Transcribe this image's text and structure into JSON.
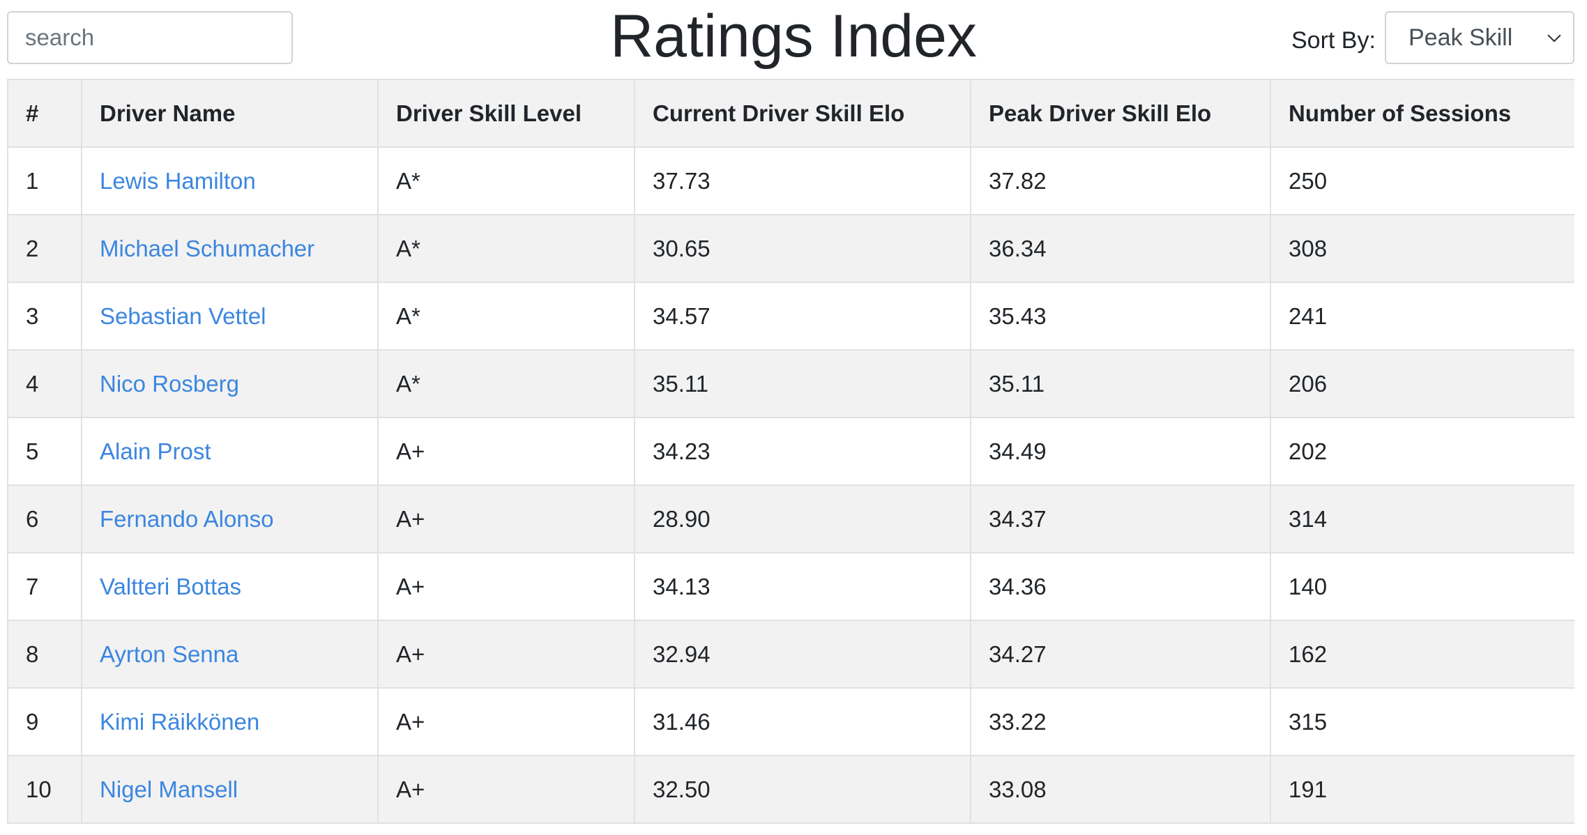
{
  "header": {
    "search_placeholder": "search",
    "title": "Ratings Index",
    "sort_label": "Sort By:",
    "sort_selected": "Peak Skill",
    "sort_icon": "chevron-down-icon"
  },
  "table": {
    "columns": [
      "#",
      "Driver Name",
      "Driver Skill Level",
      "Current Driver Skill Elo",
      "Peak Driver Skill Elo",
      "Number of Sessions"
    ],
    "rows": [
      {
        "rank": "1",
        "name": "Lewis Hamilton",
        "level": "A*",
        "current": "37.73",
        "peak": "37.82",
        "sessions": "250"
      },
      {
        "rank": "2",
        "name": "Michael Schumacher",
        "level": "A*",
        "current": "30.65",
        "peak": "36.34",
        "sessions": "308"
      },
      {
        "rank": "3",
        "name": "Sebastian Vettel",
        "level": "A*",
        "current": "34.57",
        "peak": "35.43",
        "sessions": "241"
      },
      {
        "rank": "4",
        "name": "Nico Rosberg",
        "level": "A*",
        "current": "35.11",
        "peak": "35.11",
        "sessions": "206"
      },
      {
        "rank": "5",
        "name": "Alain Prost",
        "level": "A+",
        "current": "34.23",
        "peak": "34.49",
        "sessions": "202"
      },
      {
        "rank": "6",
        "name": "Fernando Alonso",
        "level": "A+",
        "current": "28.90",
        "peak": "34.37",
        "sessions": "314"
      },
      {
        "rank": "7",
        "name": "Valtteri Bottas",
        "level": "A+",
        "current": "34.13",
        "peak": "34.36",
        "sessions": "140"
      },
      {
        "rank": "8",
        "name": "Ayrton Senna",
        "level": "A+",
        "current": "32.94",
        "peak": "34.27",
        "sessions": "162"
      },
      {
        "rank": "9",
        "name": "Kimi Räikkönen",
        "level": "A+",
        "current": "31.46",
        "peak": "33.22",
        "sessions": "315"
      },
      {
        "rank": "10",
        "name": "Nigel Mansell",
        "level": "A+",
        "current": "32.50",
        "peak": "33.08",
        "sessions": "191"
      }
    ]
  },
  "colors": {
    "link": "#3b86e0",
    "stripe": "#f2f2f2",
    "border": "#dee2e6"
  }
}
